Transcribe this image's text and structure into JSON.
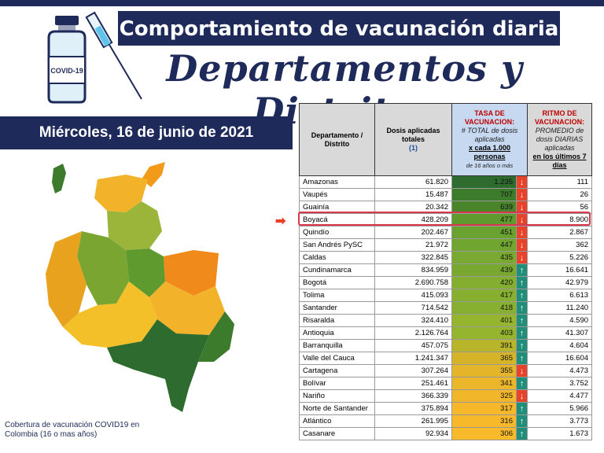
{
  "header": {
    "title": "Comportamiento de vacunación diaria",
    "script_title": "Departamentos y Distritos",
    "vial_label": "COVID-19"
  },
  "date": "Miércoles, 16 de junio de 2021",
  "map": {
    "caption": "Cobertura de vacunación COVID19 en Colombia (16 o mas años)"
  },
  "table": {
    "headers": {
      "dept": "Departamento / Distrito",
      "dosis": "Dosis aplicadas totales",
      "dosis_note": "(1)",
      "tasa_title": "TASA DE VACUNACION:",
      "tasa_sub1": "# TOTAL de dosis aplicadas",
      "tasa_sub2": "x cada 1.000 personas",
      "tasa_sub3": "de 16 años o más",
      "ritmo_title": "RITMO DE VACUNACION:",
      "ritmo_sub1": "PROMEDIO de dosis DIARIAS aplicadas",
      "ritmo_sub2": "en los últimos 7 días"
    },
    "colors": {
      "up_arrow": "#1f8f7a",
      "down_arrow": "#e8432a",
      "highlight": "#d9374b"
    },
    "rows": [
      {
        "dept": "Amazonas",
        "dosis": "61.820",
        "tasa": "1.235",
        "trend": "down",
        "ritmo": "111",
        "color": "#2e6b2e"
      },
      {
        "dept": "Vaupés",
        "dosis": "15.487",
        "tasa": "707",
        "trend": "down",
        "ritmo": "26",
        "color": "#3c7a2c"
      },
      {
        "dept": "Guainía",
        "dosis": "20.342",
        "tasa": "639",
        "trend": "down",
        "ritmo": "56",
        "color": "#4a852c"
      },
      {
        "dept": "Boyacá",
        "dosis": "428.209",
        "tasa": "477",
        "trend": "down",
        "ritmo": "8.900",
        "color": "#5e9a2e"
      },
      {
        "dept": "Quindío",
        "dosis": "202.467",
        "tasa": "451",
        "trend": "down",
        "ritmo": "2.867",
        "color": "#6aa22f"
      },
      {
        "dept": "San Andrés PySC",
        "dosis": "21.972",
        "tasa": "447",
        "trend": "down",
        "ritmo": "362",
        "color": "#70a530"
      },
      {
        "dept": "Caldas",
        "dosis": "322.845",
        "tasa": "435",
        "trend": "down",
        "ritmo": "5.226",
        "color": "#79a930"
      },
      {
        "dept": "Cundinamarca",
        "dosis": "834.959",
        "tasa": "439",
        "trend": "up",
        "ritmo": "16.641",
        "color": "#78a830"
      },
      {
        "dept": "Bogotá",
        "dosis": "2.690.758",
        "tasa": "420",
        "trend": "up",
        "ritmo": "42.979",
        "color": "#84ae30"
      },
      {
        "dept": "Tolima",
        "dosis": "415.093",
        "tasa": "417",
        "trend": "up",
        "ritmo": "6.613",
        "color": "#88b030"
      },
      {
        "dept": "Santander",
        "dosis": "714.542",
        "tasa": "418",
        "trend": "up",
        "ritmo": "11.240",
        "color": "#88b030"
      },
      {
        "dept": "Risaralda",
        "dosis": "324.410",
        "tasa": "401",
        "trend": "up",
        "ritmo": "4.590",
        "color": "#95b52f"
      },
      {
        "dept": "Antioquia",
        "dosis": "2.126.764",
        "tasa": "403",
        "trend": "up",
        "ritmo": "41.307",
        "color": "#95b52f"
      },
      {
        "dept": "Barranquilla",
        "dosis": "457.075",
        "tasa": "391",
        "trend": "up",
        "ritmo": "4.604",
        "color": "#b8b52a"
      },
      {
        "dept": "Valle del Cauca",
        "dosis": "1.241.347",
        "tasa": "365",
        "trend": "up",
        "ritmo": "16.604",
        "color": "#d6b42a"
      },
      {
        "dept": "Cartagena",
        "dosis": "307.264",
        "tasa": "355",
        "trend": "down",
        "ritmo": "4.473",
        "color": "#e4b52a"
      },
      {
        "dept": "Bolívar",
        "dosis": "251.461",
        "tasa": "341",
        "trend": "up",
        "ritmo": "3.752",
        "color": "#ecb62a"
      },
      {
        "dept": "Nariño",
        "dosis": "366.339",
        "tasa": "325",
        "trend": "down",
        "ritmo": "4.477",
        "color": "#f2b62a"
      },
      {
        "dept": "Norte de Santander",
        "dosis": "375.894",
        "tasa": "317",
        "trend": "up",
        "ritmo": "5.966",
        "color": "#f6b72a"
      },
      {
        "dept": "Atlántico",
        "dosis": "261.995",
        "tasa": "316",
        "trend": "up",
        "ritmo": "3.773",
        "color": "#f7b82a"
      },
      {
        "dept": "Casanare",
        "dosis": "92.934",
        "tasa": "306",
        "trend": "up",
        "ritmo": "1.673",
        "color": "#f8b92a"
      }
    ]
  }
}
